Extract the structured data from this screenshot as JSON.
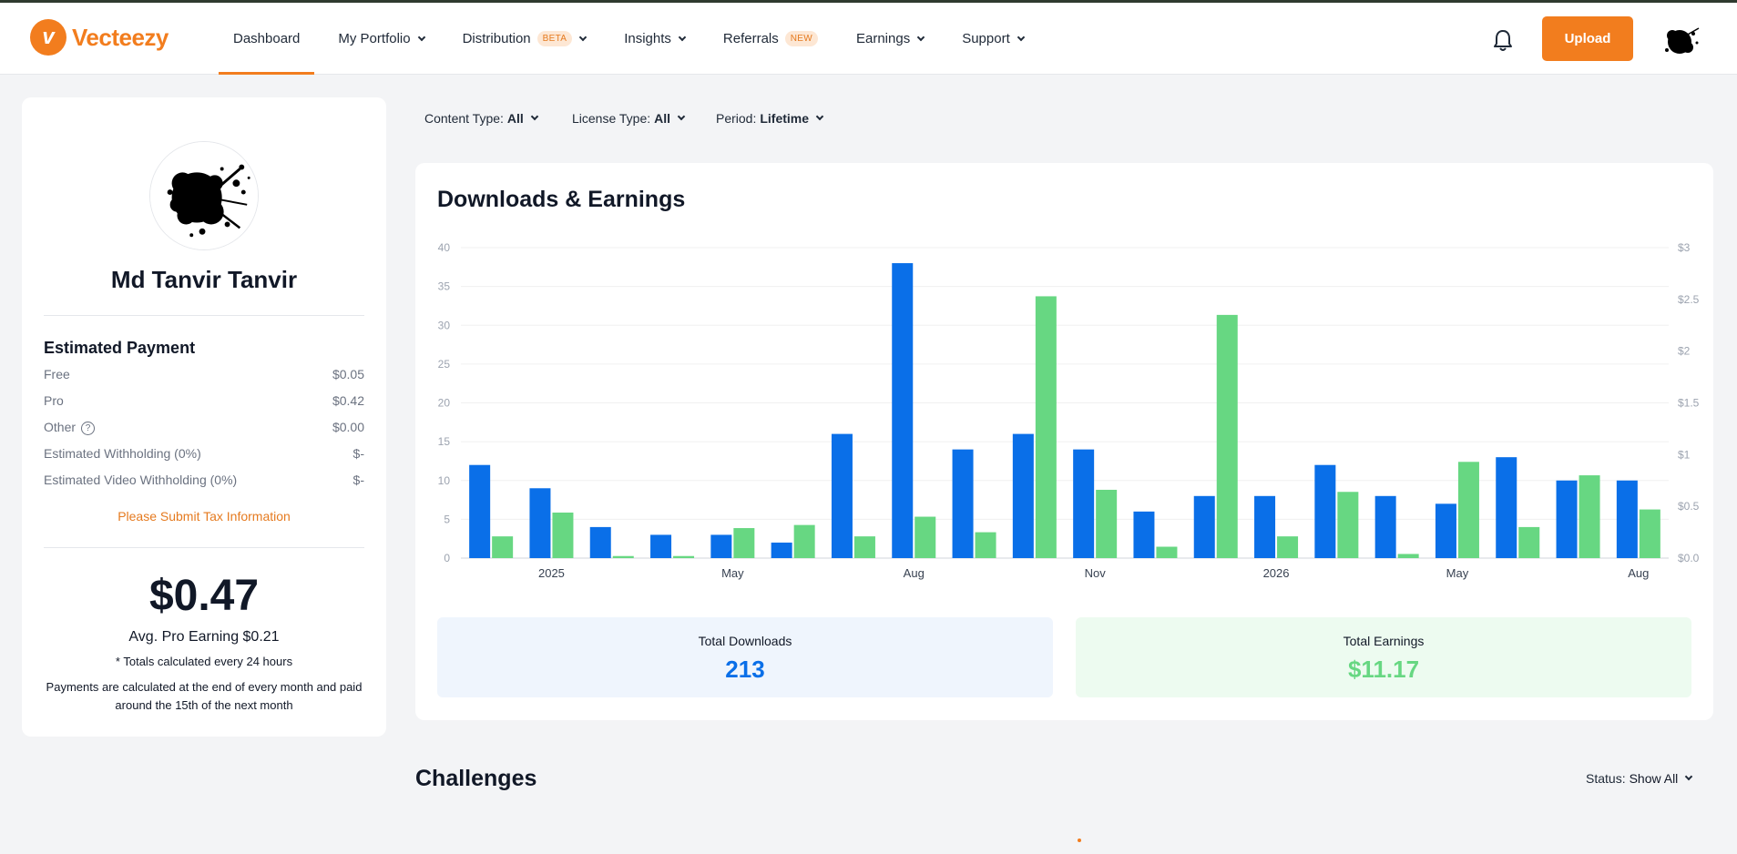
{
  "brand": {
    "name": "Vecteezy",
    "accent": "#f27d1e"
  },
  "nav": {
    "items": [
      {
        "label": "Dashboard",
        "active": true,
        "dropdown": false,
        "badge": ""
      },
      {
        "label": "My Portfolio",
        "active": false,
        "dropdown": true,
        "badge": ""
      },
      {
        "label": "Distribution",
        "active": false,
        "dropdown": true,
        "badge": "BETA"
      },
      {
        "label": "Insights",
        "active": false,
        "dropdown": true,
        "badge": ""
      },
      {
        "label": "Referrals",
        "active": false,
        "dropdown": false,
        "badge": "NEW"
      },
      {
        "label": "Earnings",
        "active": false,
        "dropdown": true,
        "badge": ""
      },
      {
        "label": "Support",
        "active": false,
        "dropdown": true,
        "badge": ""
      }
    ],
    "upload_label": "Upload"
  },
  "profile": {
    "name": "Md Tanvir Tanvir",
    "estimated_payment_title": "Estimated Payment",
    "rows": [
      {
        "label": "Free",
        "value": "$0.05",
        "help": false
      },
      {
        "label": "Pro",
        "value": "$0.42",
        "help": false
      },
      {
        "label": "Other",
        "value": "$0.00",
        "help": true
      },
      {
        "label": "Estimated Withholding (0%)",
        "value": "$-",
        "help": false
      },
      {
        "label": "Estimated Video Withholding (0%)",
        "value": "$-",
        "help": false
      }
    ],
    "tax_link": "Please Submit Tax Information",
    "total": "$0.47",
    "avg_pro": "Avg. Pro Earning $0.21",
    "note_totals": "* Totals calculated every 24 hours",
    "note_payments": "Payments are calculated at the end of every month and paid around the 15th of the next month"
  },
  "filters": {
    "content_type": {
      "label": "Content Type:",
      "value": "All"
    },
    "license_type": {
      "label": "License Type:",
      "value": "All"
    },
    "period": {
      "label": "Period:",
      "value": "Lifetime"
    }
  },
  "chart_card": {
    "title": "Downloads & Earnings",
    "total_downloads_label": "Total Downloads",
    "total_downloads": "213",
    "total_earnings_label": "Total Earnings",
    "total_earnings": "$11.17"
  },
  "chart_data": {
    "type": "bar",
    "y_left": {
      "ticks": [
        "0",
        "5",
        "10",
        "15",
        "20",
        "25",
        "30",
        "35",
        "40"
      ],
      "range": [
        0,
        40
      ]
    },
    "y_right": {
      "ticks": [
        "$0.0",
        "$0.5",
        "$1",
        "$1.5",
        "$2",
        "$2.5",
        "$3"
      ],
      "range": [
        0,
        3
      ]
    },
    "x_tick_labels": [
      {
        "label": "2025",
        "index": 1
      },
      {
        "label": "May",
        "index": 4
      },
      {
        "label": "Aug",
        "index": 7
      },
      {
        "label": "Nov",
        "index": 10
      },
      {
        "label": "2026",
        "index": 13
      },
      {
        "label": "May",
        "index": 16
      },
      {
        "label": "Aug",
        "index": 19
      }
    ],
    "series": [
      {
        "color": "#0a6fe8",
        "axis": "left",
        "values": [
          12,
          9,
          4,
          3,
          3,
          2,
          16,
          38,
          14,
          16,
          14,
          6,
          8,
          8,
          12,
          8,
          7,
          13,
          10,
          10
        ]
      },
      {
        "color": "#67d782",
        "axis": "right",
        "values": [
          0.21,
          0.44,
          0.02,
          0.02,
          0.29,
          0.32,
          0.21,
          0.4,
          0.25,
          2.53,
          0.66,
          0.11,
          2.35,
          0.21,
          0.64,
          0.04,
          0.93,
          0.3,
          0.8,
          0.47
        ]
      }
    ],
    "grid": true
  },
  "challenges": {
    "title": "Challenges",
    "status_label": "Status:",
    "status_value": "Show All"
  }
}
